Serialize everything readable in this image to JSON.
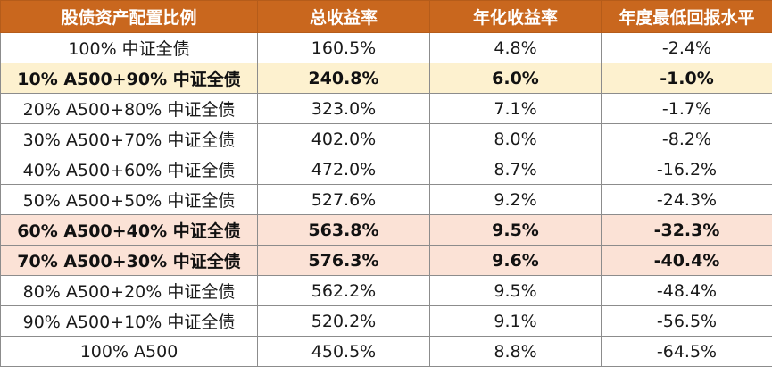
{
  "table": {
    "headers": [
      "股债资产配置比例",
      "总收益率",
      "年化收益率",
      "年度最低回报水平"
    ],
    "highlight_colors": {
      "header_bg": "#c9671e",
      "yellow": "#fdf1cf",
      "pink": "#fbe2d6"
    },
    "rows": [
      {
        "allocation": "100% 中证全债",
        "total_return": "160.5%",
        "annual_return": "4.8%",
        "worst_year": "-2.4%",
        "highlight": "none"
      },
      {
        "allocation": "10% A500+90% 中证全债",
        "total_return": "240.8%",
        "annual_return": "6.0%",
        "worst_year": "-1.0%",
        "highlight": "yellow"
      },
      {
        "allocation": "20% A500+80% 中证全债",
        "total_return": "323.0%",
        "annual_return": "7.1%",
        "worst_year": "-1.7%",
        "highlight": "none"
      },
      {
        "allocation": "30% A500+70% 中证全债",
        "total_return": "402.0%",
        "annual_return": "8.0%",
        "worst_year": "-8.2%",
        "highlight": "none"
      },
      {
        "allocation": "40% A500+60% 中证全债",
        "total_return": "472.0%",
        "annual_return": "8.7%",
        "worst_year": "-16.2%",
        "highlight": "none"
      },
      {
        "allocation": "50% A500+50% 中证全债",
        "total_return": "527.6%",
        "annual_return": "9.2%",
        "worst_year": "-24.3%",
        "highlight": "none"
      },
      {
        "allocation": "60% A500+40% 中证全债",
        "total_return": "563.8%",
        "annual_return": "9.5%",
        "worst_year": "-32.3%",
        "highlight": "pink"
      },
      {
        "allocation": "70% A500+30% 中证全债",
        "total_return": "576.3%",
        "annual_return": "9.6%",
        "worst_year": "-40.4%",
        "highlight": "pink"
      },
      {
        "allocation": "80% A500+20% 中证全债",
        "total_return": "562.2%",
        "annual_return": "9.5%",
        "worst_year": "-48.4%",
        "highlight": "none"
      },
      {
        "allocation": "90% A500+10% 中证全债",
        "total_return": "520.2%",
        "annual_return": "9.1%",
        "worst_year": "-56.5%",
        "highlight": "none"
      },
      {
        "allocation": "100% A500",
        "total_return": "450.5%",
        "annual_return": "8.8%",
        "worst_year": "-64.5%",
        "highlight": "none"
      }
    ]
  }
}
